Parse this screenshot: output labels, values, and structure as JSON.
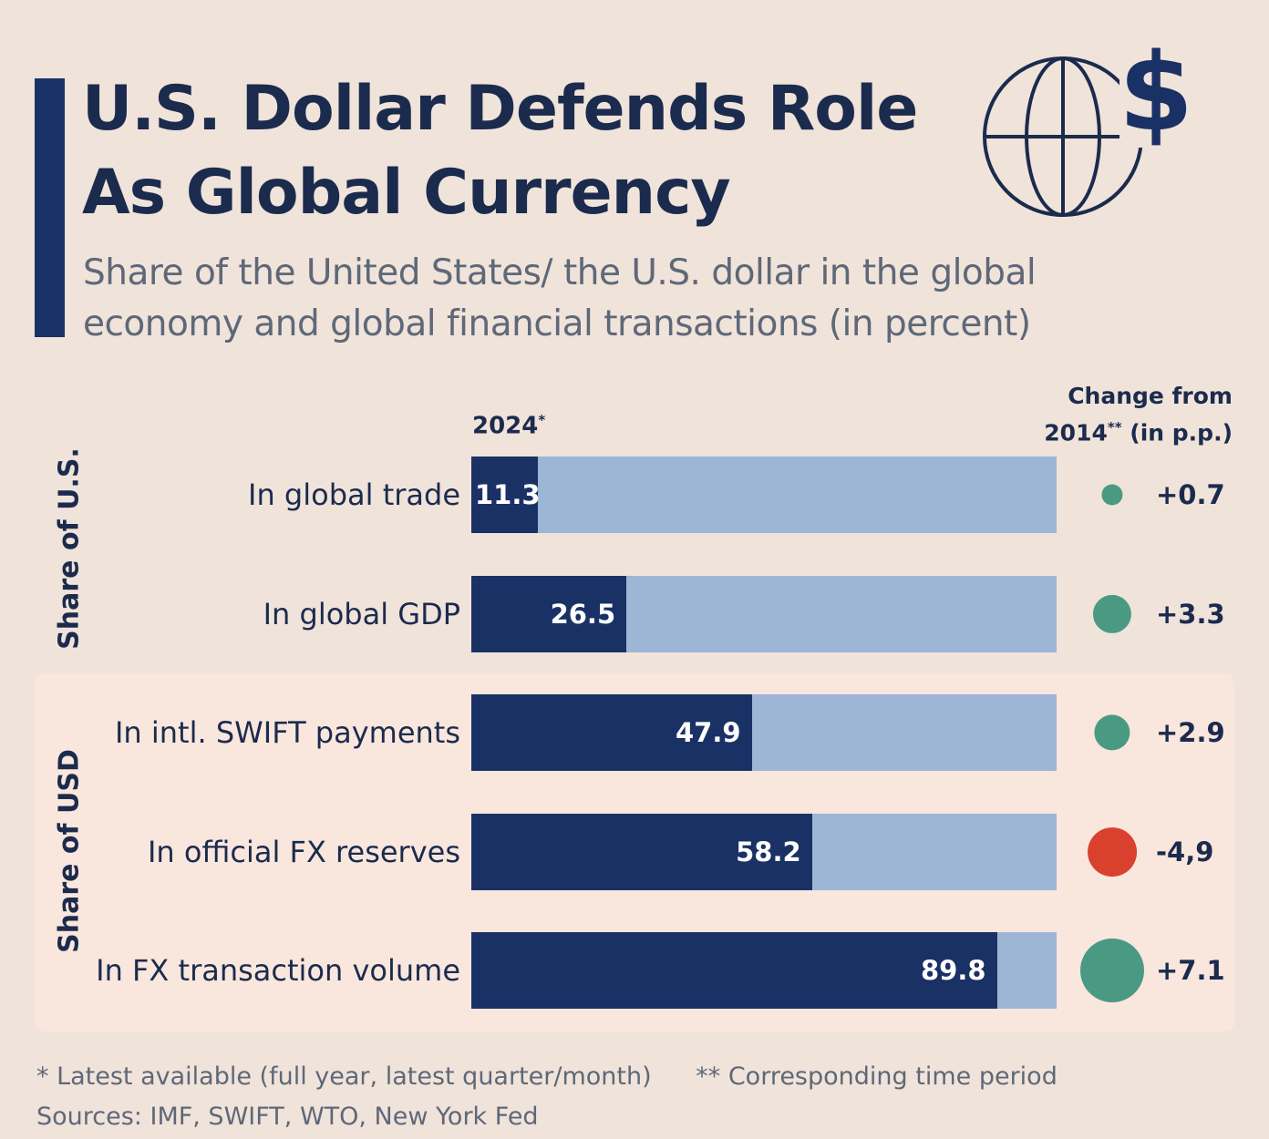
{
  "title": {
    "line1": "U.S. Dollar Defends Role",
    "line2": "As Global Currency"
  },
  "subtitle": {
    "line1": "Share of the United States/ the U.S. dollar in the global",
    "line2": "economy and global financial transactions (in percent)"
  },
  "colors": {
    "navy": "#1a3166",
    "light_blue": "#9db6d6",
    "positive": "#4a9a83",
    "negative": "#d9412e",
    "background": "#f0e3da",
    "panel": "#f9e6dd"
  },
  "chart_data": {
    "type": "bar",
    "orientation": "horizontal",
    "value_column_header": {
      "text": "2024",
      "mark": "*"
    },
    "change_column_header": {
      "line1": "Change from",
      "line2_prefix": "2014",
      "line2_mark": "**",
      "line2_suffix": " (in p.p.)"
    },
    "xlim": [
      0,
      100
    ],
    "groups": [
      {
        "label": "Share of U.S.",
        "categories": [
          "In global trade",
          "In global GDP"
        ]
      },
      {
        "label": "Share of USD",
        "categories": [
          "In intl. SWIFT payments",
          "In official FX reserves",
          "In FX transaction volume"
        ]
      }
    ],
    "categories": [
      "In global trade",
      "In global GDP",
      "In intl. SWIFT payments",
      "In official FX reserves",
      "In FX transaction volume"
    ],
    "values": [
      11.3,
      26.5,
      47.9,
      58.2,
      89.8
    ],
    "value_labels": [
      "11.3",
      "26.5",
      "47.9",
      "58.2",
      "89.8"
    ],
    "changes": [
      0.7,
      3.3,
      2.9,
      -4.9,
      7.1
    ],
    "change_labels": [
      "+0.7",
      "+3.3",
      "+2.9",
      "-4,9",
      "+7.1"
    ]
  },
  "footnotes": {
    "note1": "* Latest available (full year, latest quarter/month)",
    "note2": "** Corresponding time period",
    "sources": "Sources: IMF, SWIFT, WTO, New York Fed"
  },
  "icons": {
    "logo": "globe-dollar-icon"
  }
}
